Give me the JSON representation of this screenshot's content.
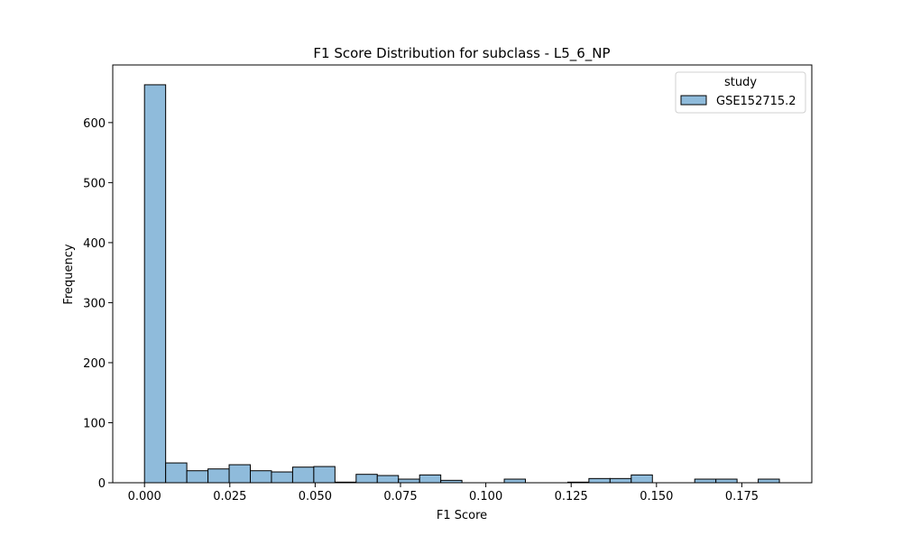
{
  "chart_data": {
    "type": "bar",
    "title": "F1 Score Distribution for subclass - L5_6_NP",
    "xlabel": "F1 Score",
    "ylabel": "Frequency",
    "xlim": [
      -0.0093,
      0.1955
    ],
    "ylim": [
      0,
      696
    ],
    "xticks": [
      0.0,
      0.025,
      0.05,
      0.075,
      0.1,
      0.125,
      0.15,
      0.175
    ],
    "xtick_labels": [
      "0.000",
      "0.025",
      "0.050",
      "0.075",
      "0.100",
      "0.125",
      "0.150",
      "0.175"
    ],
    "yticks": [
      0,
      100,
      200,
      300,
      400,
      500,
      600
    ],
    "ytick_labels": [
      "0",
      "100",
      "200",
      "300",
      "400",
      "500",
      "600"
    ],
    "bin_start": 0.0,
    "bin_width": 0.0062,
    "values": [
      663,
      33,
      20,
      23,
      30,
      20,
      18,
      26,
      27,
      1,
      14,
      12,
      6,
      13,
      4,
      0,
      0,
      6,
      0,
      0,
      1,
      7,
      7,
      13,
      0,
      0,
      6,
      6,
      0,
      6
    ],
    "series": [
      {
        "name": "GSE152715.2",
        "color": "#8fbbdb",
        "edge_color": "#000000"
      }
    ],
    "legend": {
      "title": "study",
      "position": "top-right"
    },
    "grid": false
  }
}
